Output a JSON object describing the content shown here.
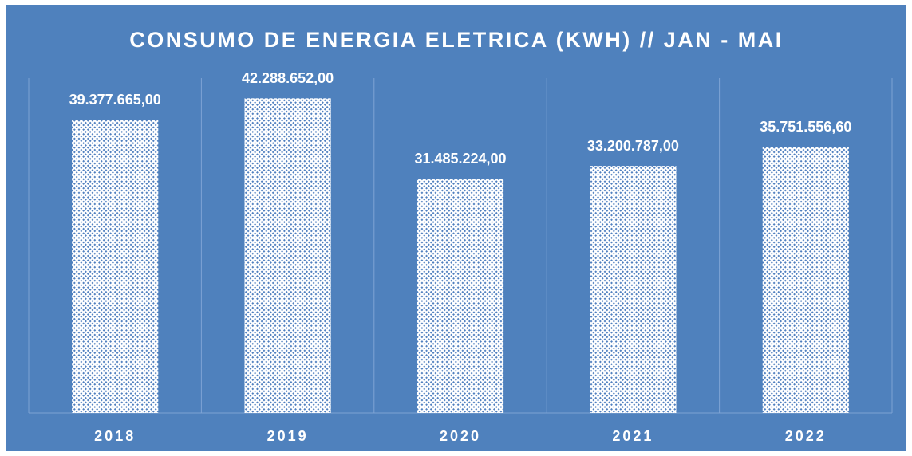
{
  "chart_data": {
    "type": "bar",
    "title": "CONSUMO DE ENERGIA ELETRICA (KWH) // JAN - MAI",
    "categories": [
      "2018",
      "2019",
      "2020",
      "2021",
      "2022"
    ],
    "values": [
      39377665,
      42288652,
      31485224,
      33200787,
      35751556.6
    ],
    "value_labels": [
      "39.377.665,00",
      "42.288.652,00",
      "31.485.224,00",
      "33.200.787,00",
      "35.751.556,60"
    ],
    "color": "#ffffff",
    "ylim": [
      0,
      45000000
    ]
  }
}
